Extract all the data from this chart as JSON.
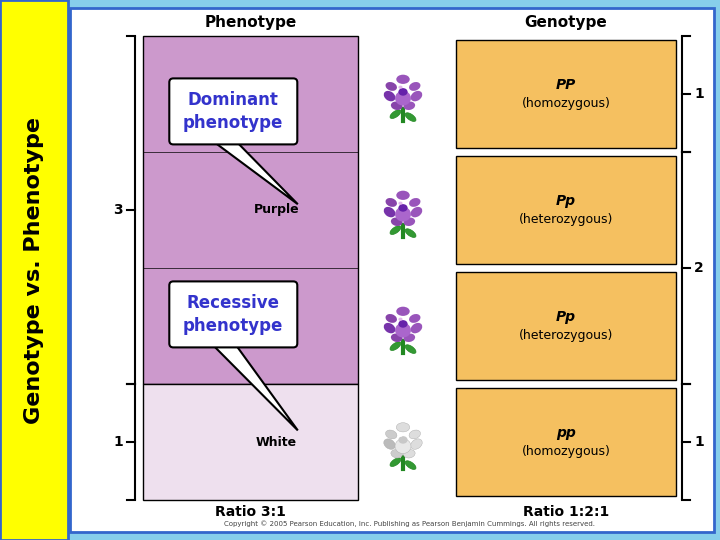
{
  "bg_color": "#87CEEB",
  "sidebar_color": "#FFFF00",
  "sidebar_text": "Genotype vs. Phenotype",
  "main_bg": "#FFFFFF",
  "border_color": "#3366CC",
  "phenotype_header": "Phenotype",
  "genotype_header": "Genotype",
  "purple_box_color": "#CC99CC",
  "white_pheno_color": "#EEE0EE",
  "orange_box_color": "#F5C060",
  "phenotype_labels": [
    "Purple",
    "Purple",
    "Purple",
    "White"
  ],
  "genotype_labels": [
    "PP",
    "Pp",
    "Pp",
    "pp"
  ],
  "genotype_subs": [
    "(homozygous)",
    "(heterozygous)",
    "(heterozygous)",
    "(homozygous)"
  ],
  "flower_types": [
    "purple",
    "purple",
    "purple",
    "white"
  ],
  "ratio_phenotype": "Ratio 3:1",
  "ratio_genotype": "Ratio 1:2:1",
  "dominant_callout": "Dominant\nphenotype",
  "recessive_callout": "Recessive\nphenotype",
  "callout_text_color": "#3333CC",
  "copyright": "Copyright © 2005 Pearson Education, Inc. Publishing as Pearson Benjamin Cummings. All rights reserved.",
  "left_labels": [
    "3",
    "",
    "",
    "1"
  ],
  "right_labels": [
    "1",
    "2",
    "",
    "1"
  ],
  "sidebar_fontsize": 16,
  "header_fontsize": 11,
  "label_fontsize": 9,
  "geno_fontsize": 10,
  "ratio_fontsize": 10,
  "callout_fontsize": 12
}
